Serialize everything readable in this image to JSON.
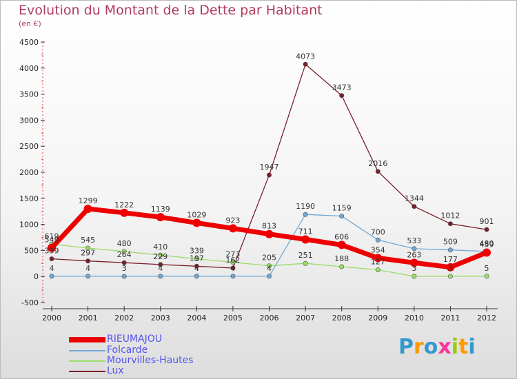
{
  "header": {
    "title": "Evolution du Montant de la Dette par Habitant",
    "subtitle": "(en €)"
  },
  "logo": {
    "text": "Proxiti",
    "colors": [
      "#3399cc",
      "#ff9900",
      "#3399cc",
      "#ff3399",
      "#99cc00",
      "#ff9900",
      "#3399cc"
    ]
  },
  "chart_data": {
    "type": "line",
    "title": "Evolution du Montant de la Dette par Habitant",
    "subtitle": "(en €)",
    "x": [
      "2000",
      "2001",
      "2002",
      "2003",
      "2004",
      "2005",
      "2006",
      "2007",
      "2008",
      "2009",
      "2010",
      "2011",
      "2012"
    ],
    "ylim": [
      -500,
      4500
    ],
    "yticks": [
      -500,
      0,
      500,
      1000,
      1500,
      2000,
      2500,
      3000,
      3500,
      4000,
      4500
    ],
    "grid": false,
    "legend_position": "bottom-left",
    "series": [
      {
        "name": "RIEUMAJOU",
        "color": "#ee0000",
        "width": 7,
        "values": [
          549,
          1299,
          1222,
          1139,
          1029,
          923,
          813,
          711,
          606,
          354,
          263,
          177,
          459
        ]
      },
      {
        "name": "Folcarde",
        "color": "#6fa8d6",
        "width": 1.3,
        "values": [
          4,
          4,
          3,
          4,
          4,
          4,
          4,
          1190,
          1159,
          700,
          533,
          509,
          480
        ]
      },
      {
        "name": "Mourvilles-Hautes",
        "color": "#99dd66",
        "width": 1.3,
        "values": [
          619,
          545,
          480,
          410,
          339,
          273,
          205,
          251,
          188,
          127,
          3,
          3,
          5
        ]
      },
      {
        "name": "Lux",
        "color": "#7a1f2a",
        "width": 1.3,
        "values": [
          339,
          297,
          264,
          229,
          197,
          162,
          1947,
          4073,
          3473,
          2016,
          1344,
          1012,
          901
        ]
      }
    ]
  }
}
